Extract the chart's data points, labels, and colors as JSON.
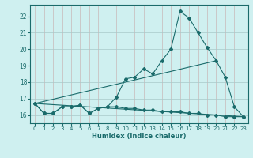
{
  "xlabel": "Humidex (Indice chaleur)",
  "bg_color": "#cff0f0",
  "grid_color_v": "#c8b8b8",
  "grid_color_h": "#a8c8c8",
  "line_color": "#1a6b6b",
  "xlim": [
    -0.5,
    23.5
  ],
  "ylim": [
    15.5,
    22.7
  ],
  "xticks": [
    0,
    1,
    2,
    3,
    4,
    5,
    6,
    7,
    8,
    9,
    10,
    11,
    12,
    13,
    14,
    15,
    16,
    17,
    18,
    19,
    20,
    21,
    22,
    23
  ],
  "yticks": [
    16,
    17,
    18,
    19,
    20,
    21,
    22
  ],
  "series1_x": [
    0,
    1,
    2,
    3,
    4,
    5,
    6,
    7,
    8,
    9,
    10,
    11,
    12,
    13,
    14,
    15,
    16,
    17,
    18,
    19,
    20,
    21,
    22,
    23
  ],
  "series1_y": [
    16.7,
    16.1,
    16.1,
    16.5,
    16.5,
    16.6,
    16.1,
    16.4,
    16.5,
    17.1,
    18.2,
    18.3,
    18.8,
    18.5,
    19.3,
    20.0,
    22.3,
    21.9,
    21.0,
    20.1,
    19.3,
    18.3,
    16.5,
    15.9
  ],
  "series2_x": [
    0,
    1,
    2,
    3,
    4,
    5,
    6,
    7,
    8,
    9,
    10,
    11,
    12,
    13,
    14,
    15,
    16,
    17,
    18,
    19,
    20,
    21,
    22,
    23
  ],
  "series2_y": [
    16.7,
    16.1,
    16.1,
    16.5,
    16.5,
    16.6,
    16.1,
    16.4,
    16.5,
    16.5,
    16.4,
    16.4,
    16.3,
    16.3,
    16.2,
    16.2,
    16.2,
    16.1,
    16.1,
    16.0,
    16.0,
    15.9,
    15.9,
    15.9
  ],
  "trend1_x": [
    0,
    20
  ],
  "trend1_y": [
    16.7,
    19.3
  ],
  "trend2_x": [
    0,
    23
  ],
  "trend2_y": [
    16.7,
    15.9
  ]
}
